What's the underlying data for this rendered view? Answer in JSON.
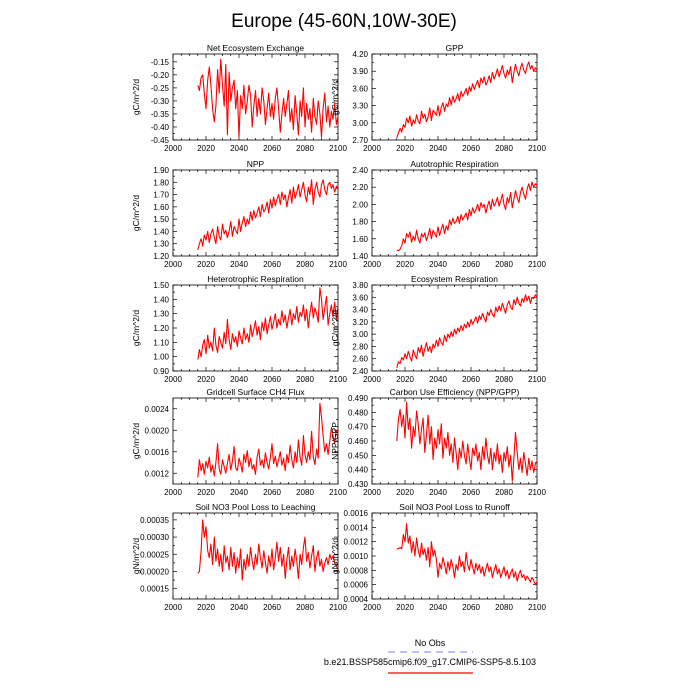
{
  "figure": {
    "title": "Europe (45-60N,10W-30E)"
  },
  "legend": {
    "items": [
      {
        "label": "No Obs",
        "color": "#9999ff",
        "style": "dashed"
      },
      {
        "label": "b.e21.BSSP585cmip6.f09_g17.CMIP6-SSP5-8.5.103",
        "color": "#ff0000",
        "style": "solid"
      }
    ]
  },
  "colors": {
    "model": "#ff0000",
    "obs": "#9999ff"
  },
  "chart_data": [
    {
      "type": "line",
      "title": "Net Ecosystem Exchange",
      "xlabel": "",
      "ylabel": "gC/m^2/d",
      "xlim": [
        2000,
        2100
      ],
      "xticks": [
        2000,
        2020,
        2040,
        2060,
        2080,
        2100
      ],
      "ylim": [
        -0.45,
        -0.12
      ],
      "yticks": [
        -0.45,
        -0.4,
        -0.35,
        -0.3,
        -0.25,
        -0.2,
        -0.15
      ],
      "ytick_labels": [
        "-0.45",
        "-0.40",
        "-0.35",
        "-0.30",
        "-0.25",
        "-0.20",
        "-0.15"
      ],
      "x_start": 2015,
      "values": [
        -0.24,
        -0.26,
        -0.21,
        -0.2,
        -0.27,
        -0.33,
        -0.22,
        -0.17,
        -0.24,
        -0.33,
        -0.38,
        -0.32,
        -0.18,
        -0.27,
        -0.14,
        -0.24,
        -0.32,
        -0.16,
        -0.43,
        -0.19,
        -0.3,
        -0.25,
        -0.22,
        -0.33,
        -0.26,
        -0.44,
        -0.28,
        -0.33,
        -0.24,
        -0.35,
        -0.3,
        -0.24,
        -0.28,
        -0.4,
        -0.32,
        -0.26,
        -0.36,
        -0.29,
        -0.35,
        -0.25,
        -0.3,
        -0.39,
        -0.33,
        -0.27,
        -0.36,
        -0.31,
        -0.37,
        -0.29,
        -0.25,
        -0.33,
        -0.42,
        -0.35,
        -0.29,
        -0.36,
        -0.31,
        -0.26,
        -0.38,
        -0.33,
        -0.41,
        -0.28,
        -0.35,
        -0.43,
        -0.3,
        -0.36,
        -0.25,
        -0.4,
        -0.31,
        -0.37,
        -0.33,
        -0.42,
        -0.29,
        -0.36,
        -0.39,
        -0.3,
        -0.35,
        -0.44,
        -0.33,
        -0.27,
        -0.38,
        -0.32,
        -0.4,
        -0.34,
        -0.37,
        -0.31,
        -0.39,
        -0.36
      ]
    },
    {
      "type": "line",
      "title": "GPP",
      "xlabel": "",
      "ylabel": "gC/m^2/d",
      "xlim": [
        2000,
        2100
      ],
      "xticks": [
        2000,
        2020,
        2040,
        2060,
        2080,
        2100
      ],
      "ylim": [
        2.7,
        4.2
      ],
      "yticks": [
        2.7,
        3.0,
        3.3,
        3.6,
        3.9,
        4.2
      ],
      "ytick_labels": [
        "2.70",
        "3.00",
        "3.30",
        "3.60",
        "3.90",
        "4.20"
      ],
      "x_start": 2015,
      "values": [
        2.74,
        2.82,
        2.9,
        2.84,
        2.97,
        2.92,
        3.08,
        3.0,
        3.12,
        2.94,
        3.05,
        2.99,
        3.14,
        3.03,
        2.98,
        3.2,
        3.08,
        3.15,
        3.02,
        3.1,
        3.26,
        3.04,
        3.22,
        3.18,
        3.13,
        3.3,
        3.12,
        3.27,
        3.35,
        3.2,
        3.33,
        3.28,
        3.44,
        3.31,
        3.47,
        3.36,
        3.42,
        3.51,
        3.38,
        3.55,
        3.46,
        3.52,
        3.6,
        3.48,
        3.63,
        3.55,
        3.68,
        3.58,
        3.66,
        3.74,
        3.61,
        3.78,
        3.7,
        3.8,
        3.66,
        3.72,
        3.82,
        3.7,
        3.88,
        3.76,
        3.84,
        3.94,
        3.8,
        3.9,
        4.0,
        3.86,
        3.78,
        3.92,
        3.84,
        3.98,
        3.7,
        3.88,
        4.02,
        3.9,
        3.82,
        3.96,
        4.04,
        3.92,
        3.86,
        3.99,
        4.06,
        3.94,
        4.0,
        3.9,
        3.96,
        3.92
      ]
    },
    {
      "type": "line",
      "title": "NPP",
      "xlabel": "",
      "ylabel": "gC/m^2/d",
      "xlim": [
        2000,
        2100
      ],
      "xticks": [
        2000,
        2020,
        2040,
        2060,
        2080,
        2100
      ],
      "ylim": [
        1.2,
        1.9
      ],
      "yticks": [
        1.2,
        1.3,
        1.4,
        1.5,
        1.6,
        1.7,
        1.8,
        1.9
      ],
      "ytick_labels": [
        "1.20",
        "1.30",
        "1.40",
        "1.50",
        "1.60",
        "1.70",
        "1.80",
        "1.90"
      ],
      "x_start": 2015,
      "values": [
        1.25,
        1.3,
        1.34,
        1.28,
        1.37,
        1.33,
        1.4,
        1.31,
        1.38,
        1.42,
        1.35,
        1.3,
        1.44,
        1.36,
        1.33,
        1.46,
        1.38,
        1.41,
        1.35,
        1.4,
        1.48,
        1.36,
        1.44,
        1.41,
        1.38,
        1.5,
        1.4,
        1.47,
        1.52,
        1.44,
        1.5,
        1.46,
        1.56,
        1.49,
        1.57,
        1.51,
        1.55,
        1.6,
        1.52,
        1.62,
        1.56,
        1.58,
        1.64,
        1.55,
        1.66,
        1.59,
        1.68,
        1.61,
        1.66,
        1.7,
        1.62,
        1.72,
        1.66,
        1.7,
        1.6,
        1.68,
        1.74,
        1.63,
        1.76,
        1.67,
        1.72,
        1.78,
        1.68,
        1.74,
        1.8,
        1.7,
        1.64,
        1.76,
        1.7,
        1.82,
        1.62,
        1.74,
        1.8,
        1.72,
        1.68,
        1.78,
        1.82,
        1.74,
        1.7,
        1.78,
        1.8,
        1.75,
        1.78,
        1.72,
        1.77,
        1.74
      ]
    },
    {
      "type": "line",
      "title": "Autotrophic Respiration",
      "xlabel": "",
      "ylabel": "",
      "xlim": [
        2000,
        2100
      ],
      "xticks": [
        2000,
        2020,
        2040,
        2060,
        2080,
        2100
      ],
      "ylim": [
        1.4,
        2.4
      ],
      "yticks": [
        1.4,
        1.6,
        1.8,
        2.0,
        2.2,
        2.4
      ],
      "ytick_labels": [
        "1.40",
        "1.60",
        "1.80",
        "2.00",
        "2.20",
        "2.40"
      ],
      "x_start": 2015,
      "values": [
        1.47,
        1.46,
        1.48,
        1.52,
        1.6,
        1.55,
        1.66,
        1.62,
        1.68,
        1.56,
        1.63,
        1.58,
        1.7,
        1.6,
        1.55,
        1.66,
        1.62,
        1.67,
        1.58,
        1.64,
        1.72,
        1.6,
        1.7,
        1.66,
        1.62,
        1.74,
        1.64,
        1.71,
        1.77,
        1.66,
        1.75,
        1.7,
        1.82,
        1.76,
        1.84,
        1.78,
        1.8,
        1.86,
        1.78,
        1.88,
        1.82,
        1.86,
        1.9,
        1.82,
        1.94,
        1.87,
        1.96,
        1.9,
        1.94,
        2.0,
        1.92,
        2.02,
        1.97,
        2.0,
        1.9,
        1.98,
        2.04,
        1.94,
        2.06,
        1.98,
        2.02,
        2.08,
        1.98,
        2.04,
        2.12,
        2.0,
        1.94,
        2.08,
        2.02,
        2.14,
        1.96,
        2.06,
        2.16,
        2.08,
        2.02,
        2.14,
        2.2,
        2.12,
        2.06,
        2.18,
        2.24,
        2.16,
        2.26,
        2.2,
        2.24,
        2.22
      ]
    },
    {
      "type": "line",
      "title": "Heterotrophic Respiration",
      "xlabel": "",
      "ylabel": "gC/m^2/d",
      "xlim": [
        2000,
        2100
      ],
      "xticks": [
        2000,
        2020,
        2040,
        2060,
        2080,
        2100
      ],
      "ylim": [
        0.9,
        1.5
      ],
      "yticks": [
        0.9,
        1.0,
        1.1,
        1.2,
        1.3,
        1.4,
        1.5
      ],
      "ytick_labels": [
        "0.90",
        "1.00",
        "1.10",
        "1.20",
        "1.30",
        "1.40",
        "1.50"
      ],
      "x_start": 2015,
      "values": [
        0.98,
        1.05,
        1.0,
        1.08,
        1.12,
        1.02,
        1.15,
        1.06,
        1.1,
        1.04,
        1.2,
        1.08,
        1.03,
        1.14,
        1.1,
        1.06,
        1.17,
        1.09,
        1.26,
        1.12,
        1.05,
        1.16,
        1.1,
        1.14,
        1.07,
        1.18,
        1.13,
        1.09,
        1.2,
        1.12,
        1.16,
        1.1,
        1.22,
        1.14,
        1.19,
        1.25,
        1.15,
        1.21,
        1.12,
        1.24,
        1.18,
        1.27,
        1.16,
        1.22,
        1.28,
        1.19,
        1.24,
        1.3,
        1.2,
        1.26,
        1.22,
        1.32,
        1.24,
        1.29,
        1.2,
        1.27,
        1.33,
        1.22,
        1.3,
        1.26,
        1.35,
        1.24,
        1.31,
        1.28,
        1.36,
        1.25,
        1.33,
        1.2,
        1.3,
        1.38,
        1.27,
        1.34,
        1.3,
        1.24,
        1.48,
        1.4,
        1.26,
        1.34,
        1.42,
        1.22,
        1.3,
        1.36,
        1.28,
        1.38,
        1.26,
        1.36
      ]
    },
    {
      "type": "line",
      "title": "Ecosystem Respiration",
      "xlabel": "",
      "ylabel": "gC/m^2/d",
      "xlim": [
        2000,
        2100
      ],
      "xticks": [
        2000,
        2020,
        2040,
        2060,
        2080,
        2100
      ],
      "ylim": [
        2.4,
        3.8
      ],
      "yticks": [
        2.4,
        2.6,
        2.8,
        3.0,
        3.2,
        3.4,
        3.6,
        3.8
      ],
      "ytick_labels": [
        "2.40",
        "2.60",
        "2.80",
        "3.00",
        "3.20",
        "3.40",
        "3.60",
        "3.80"
      ],
      "x_start": 2015,
      "values": [
        2.45,
        2.55,
        2.52,
        2.62,
        2.58,
        2.68,
        2.6,
        2.72,
        2.64,
        2.56,
        2.74,
        2.66,
        2.6,
        2.78,
        2.7,
        2.82,
        2.64,
        2.76,
        2.86,
        2.72,
        2.8,
        2.7,
        2.84,
        2.78,
        2.9,
        2.8,
        2.94,
        2.86,
        2.82,
        2.98,
        2.88,
        3.0,
        2.94,
        3.04,
        2.96,
        3.08,
        3.0,
        3.1,
        3.04,
        3.14,
        3.06,
        3.16,
        3.1,
        3.2,
        3.12,
        3.24,
        3.16,
        3.22,
        3.28,
        3.18,
        3.3,
        3.24,
        3.34,
        3.26,
        3.2,
        3.36,
        3.3,
        3.4,
        3.32,
        3.28,
        3.44,
        3.36,
        3.46,
        3.38,
        3.5,
        3.42,
        3.34,
        3.48,
        3.54,
        3.44,
        3.4,
        3.56,
        3.48,
        3.6,
        3.5,
        3.46,
        3.58,
        3.52,
        3.64,
        3.54,
        3.62,
        3.5,
        3.6,
        3.58,
        3.64,
        3.6
      ]
    },
    {
      "type": "line",
      "title": "Gridcell Surface CH4 Flux",
      "xlabel": "",
      "ylabel": "gC/m^2/d",
      "xlim": [
        2000,
        2100
      ],
      "xticks": [
        2000,
        2020,
        2040,
        2060,
        2080,
        2100
      ],
      "ylim": [
        0.001,
        0.0026
      ],
      "yticks": [
        0.0012,
        0.0016,
        0.002,
        0.0024
      ],
      "ytick_labels": [
        "0.0012",
        "0.0016",
        "0.0020",
        "0.0024"
      ],
      "x_start": 2015,
      "values": [
        0.00112,
        0.00145,
        0.00125,
        0.00138,
        0.00118,
        0.00142,
        0.0013,
        0.0015,
        0.00122,
        0.00135,
        0.00115,
        0.0014,
        0.00175,
        0.00128,
        0.00118,
        0.00145,
        0.00132,
        0.0012,
        0.00138,
        0.00155,
        0.00126,
        0.00142,
        0.0017,
        0.0013,
        0.00125,
        0.00148,
        0.00138,
        0.00122,
        0.00155,
        0.0014,
        0.00162,
        0.00132,
        0.00148,
        0.00128,
        0.00136,
        0.00118,
        0.0015,
        0.00165,
        0.00135,
        0.00145,
        0.0013,
        0.00158,
        0.0014,
        0.00128,
        0.0015,
        0.00175,
        0.00138,
        0.00152,
        0.00132,
        0.00145,
        0.0016,
        0.00135,
        0.00148,
        0.00125,
        0.00155,
        0.0014,
        0.00172,
        0.00145,
        0.0013,
        0.0016,
        0.0014,
        0.00182,
        0.0015,
        0.00135,
        0.0019,
        0.00155,
        0.0014,
        0.0016,
        0.00145,
        0.00198,
        0.0015,
        0.00136,
        0.00165,
        0.00148,
        0.0025,
        0.00225,
        0.0019,
        0.0016,
        0.00175,
        0.00155,
        0.0018,
        0.00205,
        0.0019,
        0.00175,
        0.002,
        0.00195
      ]
    },
    {
      "type": "line",
      "title": "Carbon Use Efficiency (NPP/GPP)",
      "xlabel": "",
      "ylabel": "NPP/GPP",
      "xlim": [
        2000,
        2100
      ],
      "xticks": [
        2000,
        2020,
        2040,
        2060,
        2080,
        2100
      ],
      "ylim": [
        0.43,
        0.49
      ],
      "yticks": [
        0.43,
        0.44,
        0.45,
        0.46,
        0.47,
        0.48,
        0.49
      ],
      "ytick_labels": [
        "0.430",
        "0.440",
        "0.450",
        "0.460",
        "0.470",
        "0.480",
        "0.490"
      ],
      "x_start": 2015,
      "values": [
        0.46,
        0.475,
        0.482,
        0.47,
        0.478,
        0.462,
        0.487,
        0.468,
        0.476,
        0.455,
        0.47,
        0.463,
        0.481,
        0.472,
        0.458,
        0.468,
        0.476,
        0.452,
        0.464,
        0.478,
        0.458,
        0.47,
        0.447,
        0.462,
        0.455,
        0.468,
        0.458,
        0.472,
        0.448,
        0.462,
        0.455,
        0.466,
        0.45,
        0.458,
        0.445,
        0.462,
        0.452,
        0.44,
        0.455,
        0.448,
        0.46,
        0.45,
        0.444,
        0.458,
        0.448,
        0.44,
        0.455,
        0.45,
        0.458,
        0.446,
        0.452,
        0.44,
        0.456,
        0.447,
        0.462,
        0.45,
        0.444,
        0.455,
        0.44,
        0.452,
        0.446,
        0.458,
        0.444,
        0.45,
        0.438,
        0.452,
        0.446,
        0.456,
        0.442,
        0.45,
        0.432,
        0.448,
        0.466,
        0.452,
        0.44,
        0.448,
        0.438,
        0.452,
        0.444,
        0.436,
        0.448,
        0.44,
        0.446,
        0.438,
        0.444,
        0.446
      ]
    },
    {
      "type": "line",
      "title": "Soil NO3 Pool Loss to Leaching",
      "xlabel": "",
      "ylabel": "gN/m^2/d",
      "xlim": [
        2000,
        2100
      ],
      "xticks": [
        2000,
        2020,
        2040,
        2060,
        2080,
        2100
      ],
      "ylim": [
        0.00012,
        0.00037
      ],
      "yticks": [
        0.00015,
        0.0002,
        0.00025,
        0.0003,
        0.00035
      ],
      "ytick_labels": [
        "0.00015",
        "0.00020",
        "0.00025",
        "0.00030",
        "0.00035"
      ],
      "x_start": 2015,
      "values": [
        0.000195,
        0.0002,
        0.00026,
        0.00035,
        0.0003,
        0.00033,
        0.00026,
        0.00024,
        0.00028,
        0.00022,
        0.0003,
        0.00023,
        0.000265,
        0.000215,
        0.00025,
        0.0002,
        0.000275,
        0.000225,
        0.000245,
        0.000205,
        0.00027,
        0.000215,
        0.000255,
        0.000195,
        0.00024,
        0.00021,
        0.000265,
        0.000175,
        0.000235,
        0.000205,
        0.00025,
        0.000215,
        0.00027,
        0.00023,
        0.000205,
        0.00025,
        0.00022,
        0.00028,
        0.00024,
        0.00021,
        0.00026,
        0.000225,
        0.000195,
        0.000245,
        0.000215,
        0.000265,
        0.000205,
        0.00024,
        0.000285,
        0.00023,
        0.00027,
        0.000215,
        0.00025,
        0.00018,
        0.000235,
        0.00027,
        0.000205,
        0.000245,
        0.000215,
        0.000265,
        0.00023,
        0.00018,
        0.00025,
        0.00022,
        0.00027,
        0.0003,
        0.00023,
        0.000255,
        0.00021,
        0.000245,
        0.000275,
        0.0002,
        0.00024,
        0.00026,
        0.000215,
        0.000235,
        0.0002,
        0.000225,
        0.00024,
        0.00022,
        0.00025,
        0.000235,
        0.000245,
        0.000225,
        0.000215,
        0.000205
      ]
    },
    {
      "type": "line",
      "title": "Soil NO3 Pool Loss to Runoff",
      "xlabel": "",
      "ylabel": "gN/m^2/d",
      "xlim": [
        2000,
        2100
      ],
      "xticks": [
        2000,
        2020,
        2040,
        2060,
        2080,
        2100
      ],
      "ylim": [
        0.0004,
        0.0016
      ],
      "yticks": [
        0.0004,
        0.0006,
        0.0008,
        0.001,
        0.0012,
        0.0014,
        0.0016
      ],
      "ytick_labels": [
        "0.0004",
        "0.0006",
        "0.0008",
        "0.0010",
        "0.0012",
        "0.0014",
        "0.0016"
      ],
      "x_start": 2015,
      "values": [
        0.0011,
        0.0011,
        0.00112,
        0.0011,
        0.0013,
        0.0012,
        0.00145,
        0.00118,
        0.00128,
        0.00105,
        0.0012,
        0.001,
        0.00125,
        0.00108,
        0.00098,
        0.00118,
        0.00102,
        0.0011,
        0.00094,
        0.00112,
        0.00085,
        0.0012,
        0.001,
        0.00108,
        0.00095,
        0.0007,
        0.0009,
        0.00082,
        0.00098,
        0.00088,
        0.00075,
        0.00092,
        0.0008,
        0.00095,
        0.00085,
        0.0007,
        0.00088,
        0.0008,
        0.001,
        0.00085,
        0.00092,
        0.00078,
        0.00105,
        0.00088,
        0.0008,
        0.00095,
        0.00085,
        0.00075,
        0.0009,
        0.0008,
        0.00088,
        0.00076,
        0.00085,
        0.00072,
        0.00082,
        0.0009,
        0.00078,
        0.00085,
        0.0007,
        0.0008,
        0.00088,
        0.00075,
        0.00082,
        0.0007,
        0.00078,
        0.00085,
        0.00072,
        0.0008,
        0.00068,
        0.00076,
        0.00082,
        0.0007,
        0.00078,
        0.00065,
        0.00075,
        0.0008,
        0.0007,
        0.00074,
        0.00066,
        0.00072,
        0.00068,
        0.00064,
        0.0007,
        0.00066,
        0.0006,
        0.00064
      ]
    }
  ]
}
